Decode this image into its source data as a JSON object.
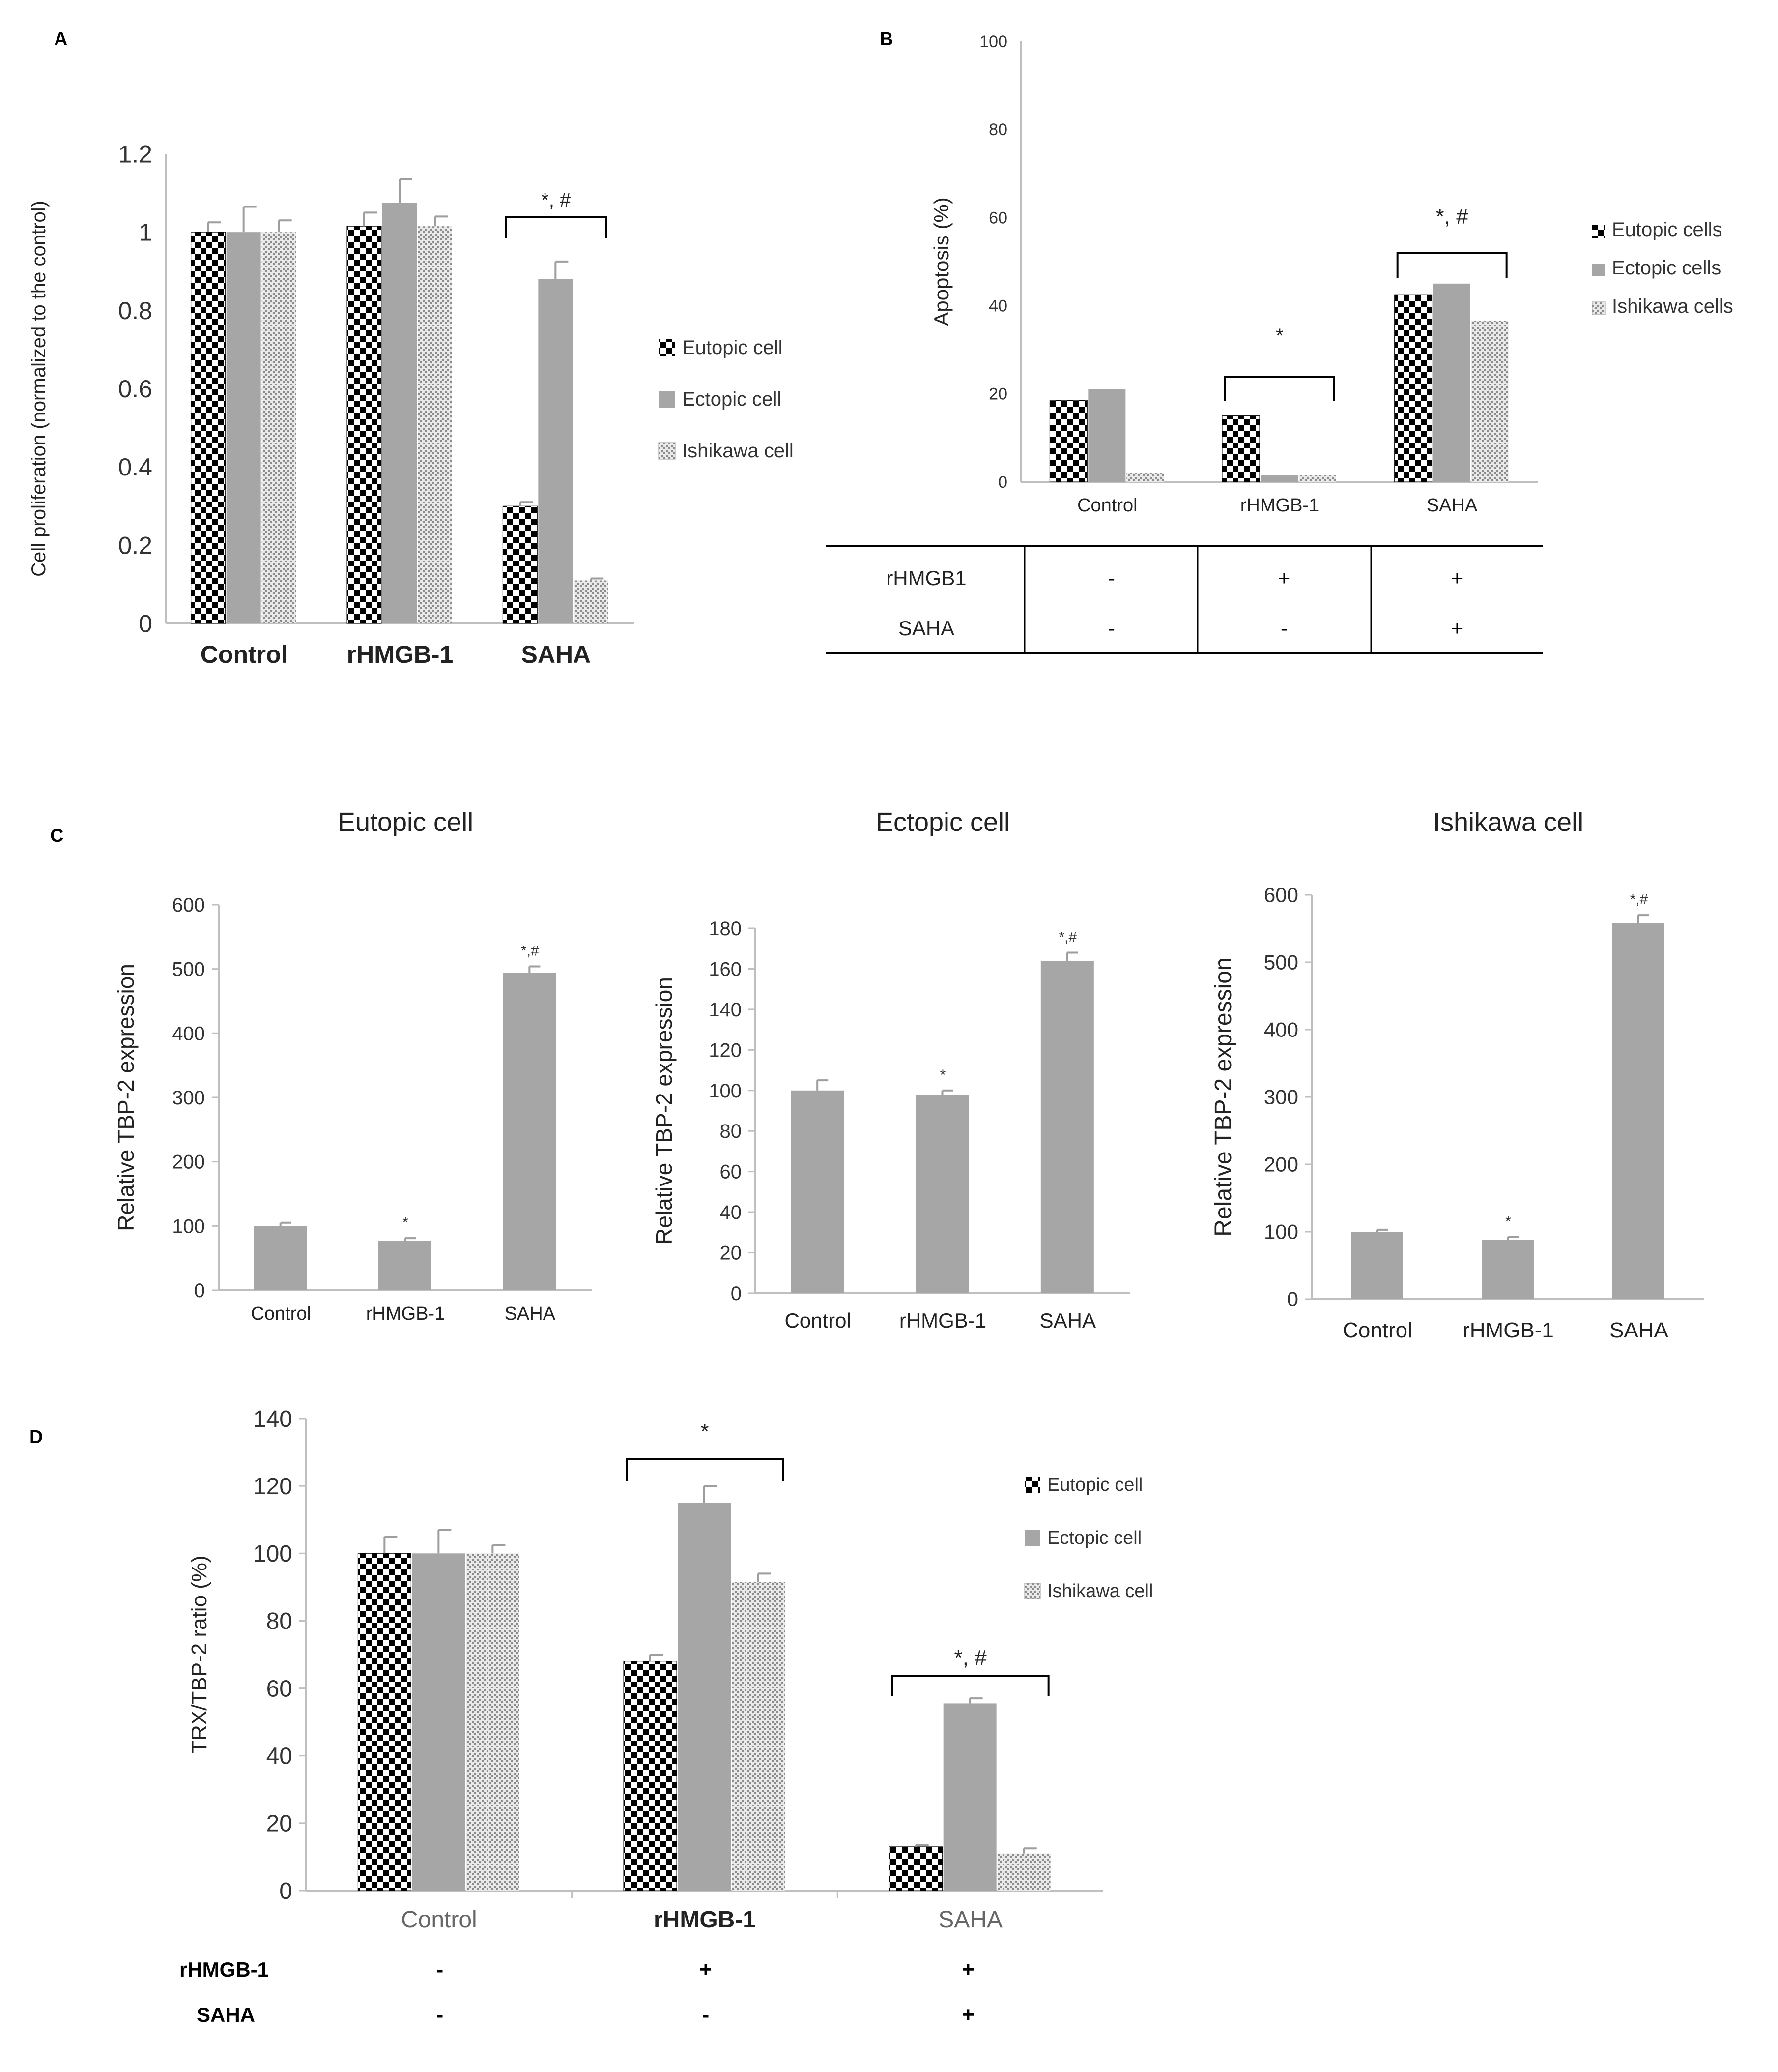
{
  "panels": {
    "A": "A",
    "B": "B",
    "C": "C",
    "D": "D"
  },
  "colors": {
    "bar_grey": "#a6a6a6",
    "axis": "#bfbfbf",
    "text": "#333333",
    "check_dark": "#000000"
  },
  "chart_data": [
    {
      "id": "A",
      "type": "bar",
      "title": "",
      "ylabel": "Cell proliferation  (normalized to the control)",
      "xlabel": "",
      "ylim": [
        0,
        1.2
      ],
      "yticks": [
        "0",
        "0.2",
        "0.4",
        "0.6",
        "0.8",
        "1",
        "1.2"
      ],
      "categories": [
        "Control",
        "rHMGB-1",
        "SAHA"
      ],
      "series": [
        {
          "name": "Eutopic cell",
          "pattern": "checker",
          "values": [
            1.0,
            1.015,
            0.3
          ],
          "errors": [
            0.025,
            0.035,
            0.01
          ]
        },
        {
          "name": "Ectopic cell",
          "pattern": "grey",
          "values": [
            1.0,
            1.075,
            0.88
          ],
          "errors": [
            0.065,
            0.06,
            0.045
          ]
        },
        {
          "name": "Ishikawa cell",
          "pattern": "dots",
          "values": [
            1.0,
            1.015,
            0.11
          ],
          "errors": [
            0.03,
            0.025,
            0.005
          ]
        }
      ],
      "annotations": [
        {
          "text": "*, #",
          "category": "SAHA"
        }
      ]
    },
    {
      "id": "B",
      "type": "bar",
      "title": "",
      "ylabel": "Apoptosis (%)",
      "xlabel": "",
      "ylim": [
        0,
        100
      ],
      "yticks": [
        "0",
        "20",
        "40",
        "60",
        "80",
        "100"
      ],
      "categories": [
        "Control",
        "rHMGB-1",
        "SAHA"
      ],
      "series": [
        {
          "name": "Eutopic cells",
          "pattern": "checker",
          "values": [
            18.5,
            15,
            42.5
          ]
        },
        {
          "name": "Ectopic cells",
          "pattern": "grey",
          "values": [
            21,
            1.5,
            45
          ]
        },
        {
          "name": "Ishikawa cells",
          "pattern": "dots",
          "values": [
            2,
            1.5,
            36.5
          ]
        }
      ],
      "annotations": [
        {
          "text": "*",
          "category": "rHMGB-1"
        },
        {
          "text": "*, #",
          "category": "SAHA"
        }
      ],
      "treatment_table": {
        "rows": [
          {
            "label": "rHMGB1",
            "values": [
              "-",
              "+",
              "+"
            ]
          },
          {
            "label": "SAHA",
            "values": [
              "-",
              "-",
              "+"
            ]
          }
        ]
      }
    },
    {
      "id": "C1",
      "type": "bar",
      "title": "Eutopic cell",
      "ylabel": "Relative TBP-2 expression",
      "xlabel": "",
      "ylim": [
        0,
        600
      ],
      "yticks": [
        "0",
        "100",
        "200",
        "300",
        "400",
        "500",
        "600"
      ],
      "categories": [
        "Control",
        "rHMGB-1",
        "SAHA"
      ],
      "series": [
        {
          "name": "TBP-2",
          "pattern": "grey",
          "values": [
            100,
            77,
            494
          ],
          "errors": [
            5,
            4,
            10
          ]
        }
      ],
      "annotations": [
        {
          "text": "",
          "category": "Control"
        },
        {
          "text": "*",
          "category": "rHMGB-1"
        },
        {
          "text": "*,#",
          "category": "SAHA"
        }
      ]
    },
    {
      "id": "C2",
      "type": "bar",
      "title": "Ectopic cell",
      "ylabel": "Relative TBP-2 expression",
      "xlabel": "",
      "ylim": [
        0,
        180
      ],
      "yticks": [
        "0",
        "20",
        "40",
        "60",
        "80",
        "100",
        "120",
        "140",
        "160",
        "180"
      ],
      "categories": [
        "Control",
        "rHMGB-1",
        "SAHA"
      ],
      "series": [
        {
          "name": "TBP-2",
          "pattern": "grey",
          "values": [
            100,
            98,
            164
          ],
          "errors": [
            5,
            2,
            4
          ]
        }
      ],
      "annotations": [
        {
          "text": "",
          "category": "Control"
        },
        {
          "text": "*",
          "category": "rHMGB-1"
        },
        {
          "text": "*,#",
          "category": "SAHA"
        }
      ]
    },
    {
      "id": "C3",
      "type": "bar",
      "title": "Ishikawa cell",
      "ylabel": "Relative TBP-2 expression",
      "xlabel": "",
      "ylim": [
        0,
        600
      ],
      "yticks": [
        "0",
        "100",
        "200",
        "300",
        "400",
        "500",
        "600"
      ],
      "categories": [
        "Control",
        "rHMGB-1",
        "SAHA"
      ],
      "series": [
        {
          "name": "TBP-2",
          "pattern": "grey",
          "values": [
            100,
            88,
            558
          ],
          "errors": [
            3,
            4,
            12
          ]
        }
      ],
      "annotations": [
        {
          "text": "",
          "category": "Control"
        },
        {
          "text": "*",
          "category": "rHMGB-1"
        },
        {
          "text": "*,#",
          "category": "SAHA"
        }
      ]
    },
    {
      "id": "D",
      "type": "bar",
      "title": "",
      "ylabel": "TRX/TBP-2 ratio (%)",
      "xlabel": "",
      "ylim": [
        0,
        140
      ],
      "yticks": [
        "0",
        "20",
        "40",
        "60",
        "80",
        "100",
        "120",
        "140"
      ],
      "categories": [
        "Control",
        "rHMGB-1",
        "SAHA"
      ],
      "series": [
        {
          "name": "Eutopic cell",
          "pattern": "checker",
          "values": [
            100,
            68,
            13
          ],
          "errors": [
            5,
            2,
            0.5
          ]
        },
        {
          "name": "Ectopic cell",
          "pattern": "grey",
          "values": [
            100,
            115,
            55.5
          ],
          "errors": [
            7,
            5,
            1.5
          ]
        },
        {
          "name": "Ishikawa cell",
          "pattern": "dots",
          "values": [
            100,
            91.5,
            11
          ],
          "errors": [
            2.5,
            2.5,
            1.5
          ]
        }
      ],
      "annotations": [
        {
          "text": "*",
          "category": "rHMGB-1"
        },
        {
          "text": "*, #",
          "category": "SAHA"
        }
      ],
      "treatment_table": {
        "rows": [
          {
            "label": "rHMGB-1",
            "values": [
              "-",
              "+",
              "+"
            ]
          },
          {
            "label": "SAHA",
            "values": [
              "-",
              "-",
              "+"
            ]
          }
        ]
      }
    }
  ]
}
